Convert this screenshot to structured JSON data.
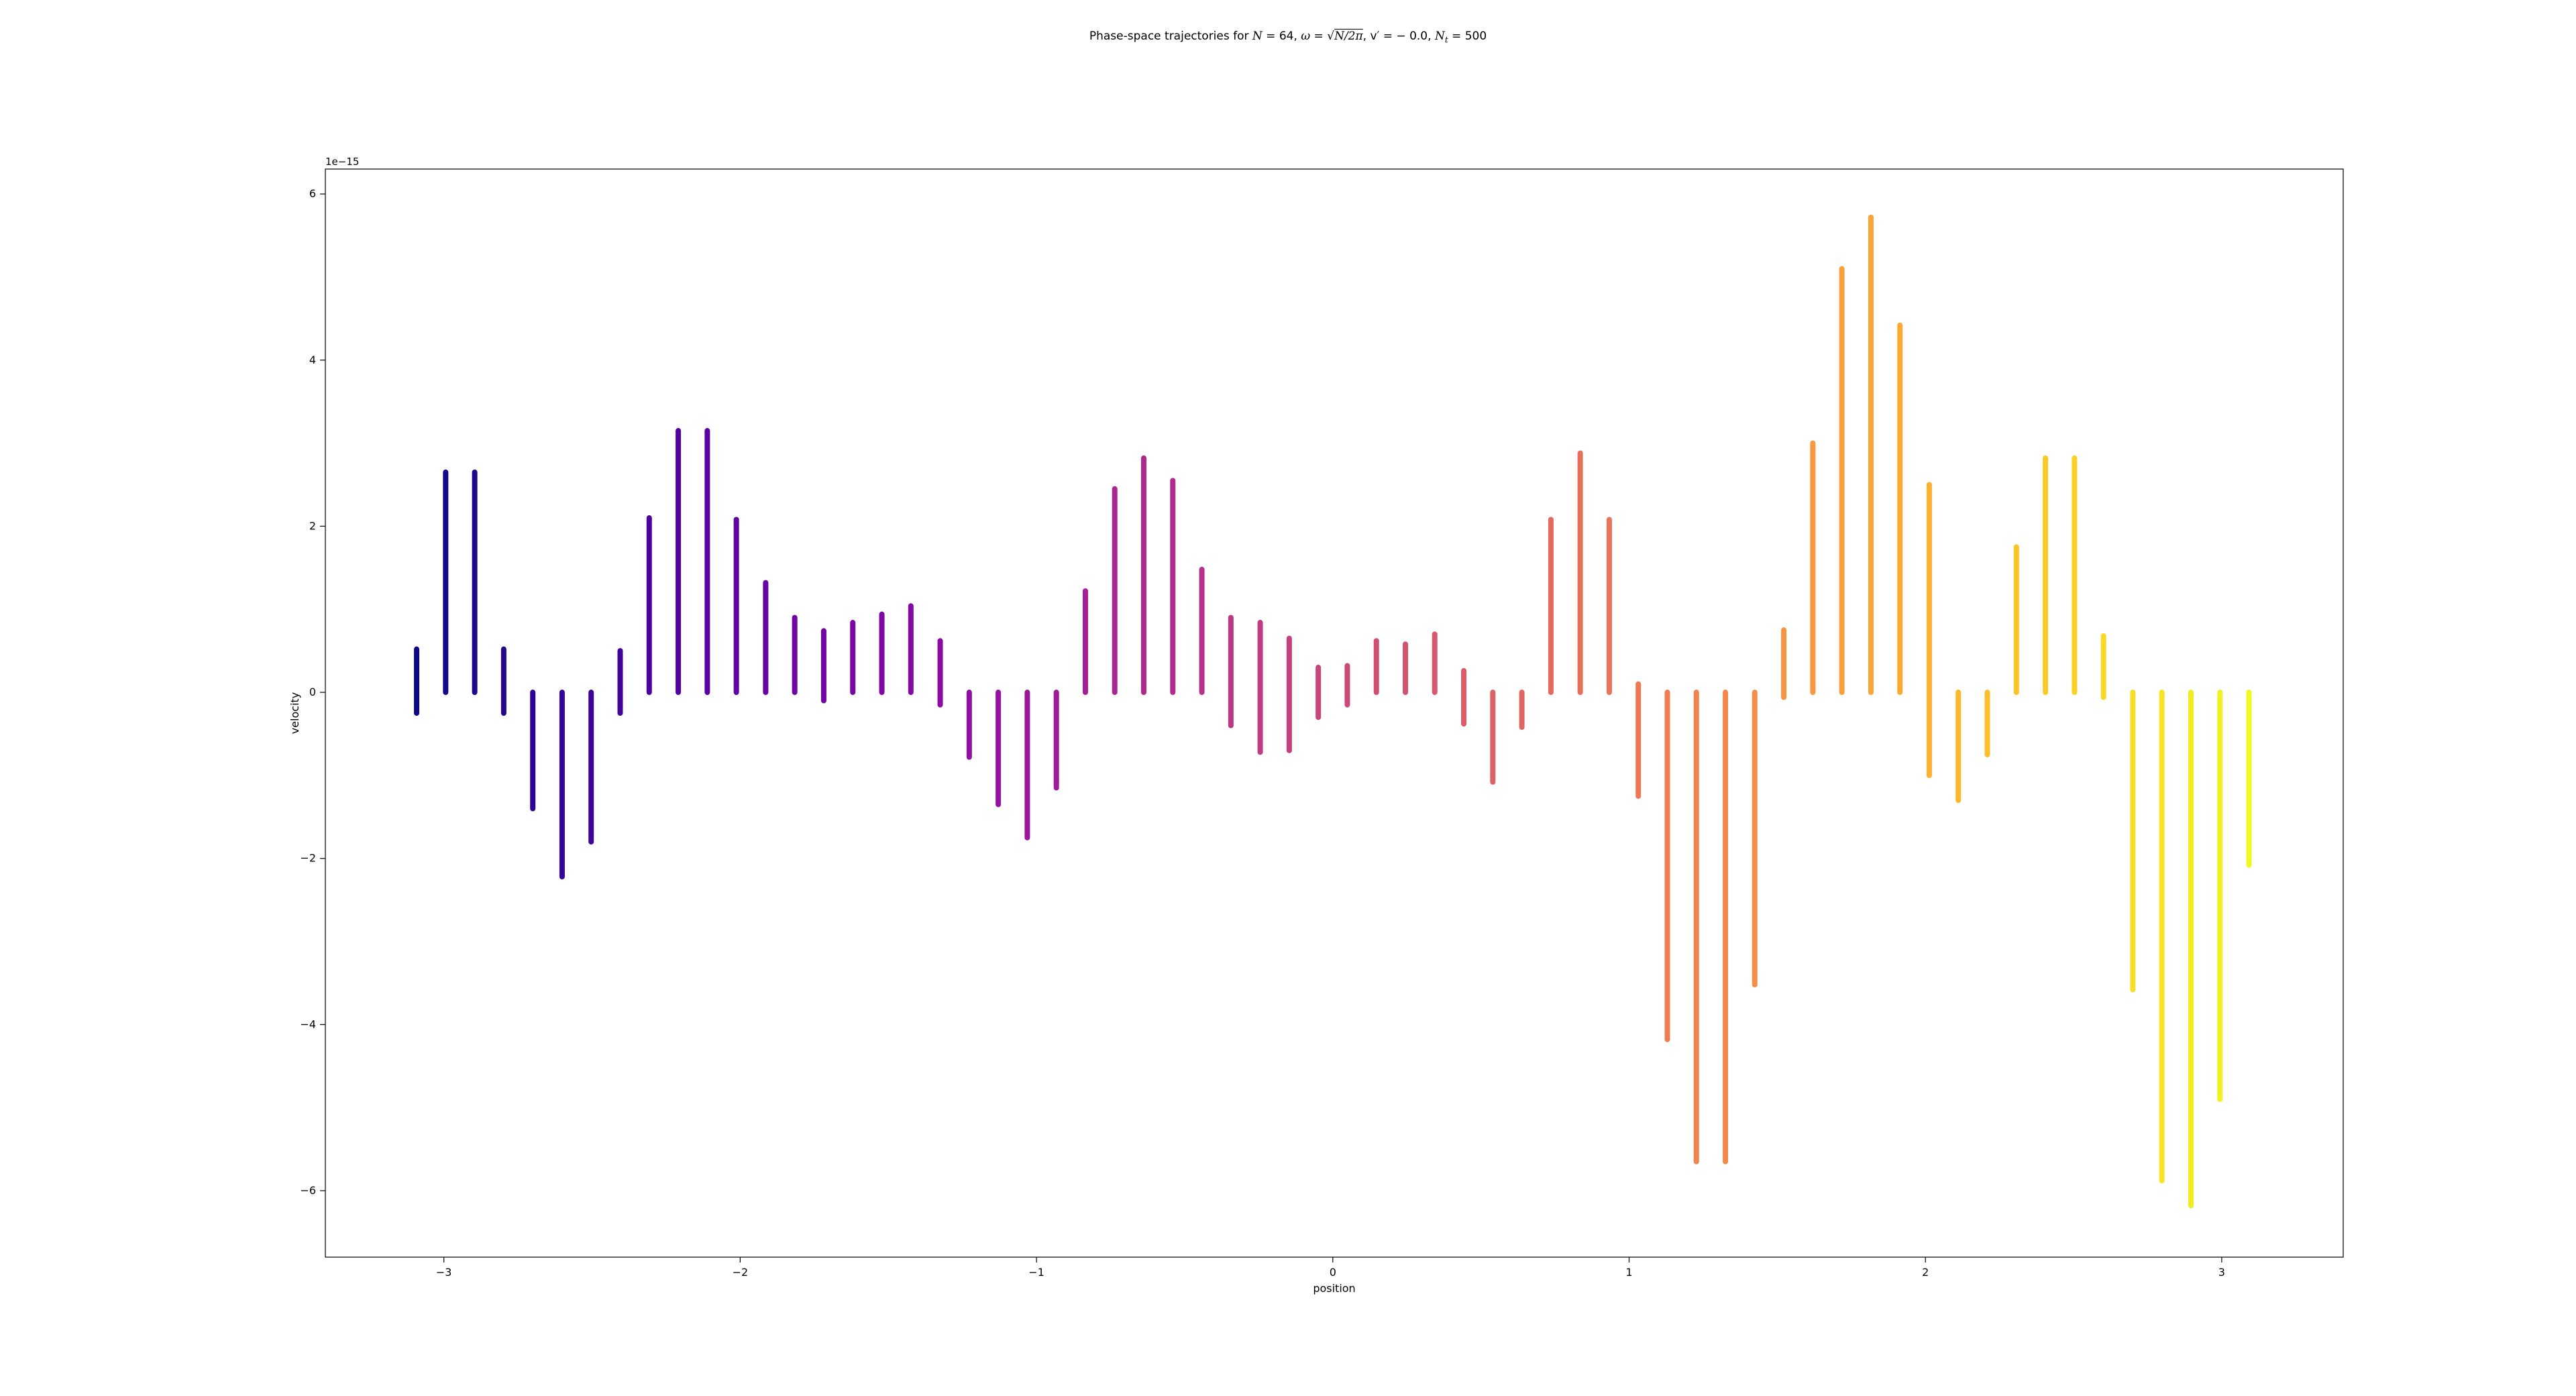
{
  "chart_data": {
    "type": "scatter",
    "title_parts": {
      "pre": "Phase-space trajectories for ",
      "N_sym": "N",
      "N_eq": " = 64, ",
      "omega_sym": "ω",
      "omega_eq": " = ",
      "sqrt_sym": "√",
      "sqrt_arg": "N/2π",
      "v_part": ", v′ = − 0.0, ",
      "Nt_sym": "N",
      "Nt_sub": "t",
      "Nt_eq": " = 500"
    },
    "xlabel": "position",
    "ylabel": "velocity",
    "y_offset_text": "1e−15",
    "xlim": [
      -3.4,
      3.41
    ],
    "ylim": [
      -6.8,
      6.3
    ],
    "x_ticks": [
      -3,
      -2,
      -1,
      0,
      1,
      2,
      3
    ],
    "x_tick_labels": [
      "−3",
      "−2",
      "−1",
      "0",
      "1",
      "2",
      "3"
    ],
    "y_ticks": [
      -6,
      -4,
      -2,
      0,
      2,
      4,
      6
    ],
    "y_tick_labels": [
      "−6",
      "−4",
      "−2",
      "0",
      "2",
      "4",
      "6"
    ],
    "colormap": "plasma",
    "colormap_stops": [
      "#0d0887",
      "#5302a3",
      "#8b0aa5",
      "#b83289",
      "#db5c68",
      "#f48849",
      "#febd2a",
      "#f0f921"
    ],
    "segments": [
      {
        "x": -3.092,
        "y_min": -0.25,
        "y_max": 0.52
      },
      {
        "x": -2.994,
        "y_min": 0.0,
        "y_max": 2.65
      },
      {
        "x": -2.896,
        "y_min": 0.0,
        "y_max": 2.65
      },
      {
        "x": -2.798,
        "y_min": -0.25,
        "y_max": 0.52
      },
      {
        "x": -2.7,
        "y_min": -1.4,
        "y_max": 0.0
      },
      {
        "x": -2.601,
        "y_min": -2.22,
        "y_max": 0.0
      },
      {
        "x": -2.503,
        "y_min": -1.8,
        "y_max": 0.0
      },
      {
        "x": -2.405,
        "y_min": -0.25,
        "y_max": 0.5
      },
      {
        "x": -2.307,
        "y_min": 0.0,
        "y_max": 2.1
      },
      {
        "x": -2.209,
        "y_min": 0.0,
        "y_max": 3.15
      },
      {
        "x": -2.111,
        "y_min": 0.0,
        "y_max": 3.15
      },
      {
        "x": -2.013,
        "y_min": 0.0,
        "y_max": 2.08
      },
      {
        "x": -1.914,
        "y_min": 0.0,
        "y_max": 1.32
      },
      {
        "x": -1.816,
        "y_min": 0.0,
        "y_max": 0.9
      },
      {
        "x": -1.718,
        "y_min": -0.1,
        "y_max": 0.74
      },
      {
        "x": -1.62,
        "y_min": 0.0,
        "y_max": 0.84
      },
      {
        "x": -1.522,
        "y_min": 0.0,
        "y_max": 0.94
      },
      {
        "x": -1.424,
        "y_min": 0.0,
        "y_max": 1.04
      },
      {
        "x": -1.325,
        "y_min": -0.15,
        "y_max": 0.62
      },
      {
        "x": -1.227,
        "y_min": -0.78,
        "y_max": 0.0
      },
      {
        "x": -1.129,
        "y_min": -1.35,
        "y_max": 0.0
      },
      {
        "x": -1.031,
        "y_min": -1.75,
        "y_max": 0.0
      },
      {
        "x": -0.933,
        "y_min": -1.15,
        "y_max": 0.0
      },
      {
        "x": -0.835,
        "y_min": 0.0,
        "y_max": 1.22
      },
      {
        "x": -0.736,
        "y_min": 0.0,
        "y_max": 2.45
      },
      {
        "x": -0.638,
        "y_min": 0.0,
        "y_max": 2.82
      },
      {
        "x": -0.54,
        "y_min": 0.0,
        "y_max": 2.55
      },
      {
        "x": -0.442,
        "y_min": 0.0,
        "y_max": 1.48
      },
      {
        "x": -0.344,
        "y_min": -0.4,
        "y_max": 0.9
      },
      {
        "x": -0.245,
        "y_min": -0.72,
        "y_max": 0.84
      },
      {
        "x": -0.147,
        "y_min": -0.7,
        "y_max": 0.65
      },
      {
        "x": -0.049,
        "y_min": -0.3,
        "y_max": 0.3
      },
      {
        "x": 0.049,
        "y_min": -0.15,
        "y_max": 0.32
      },
      {
        "x": 0.147,
        "y_min": 0.0,
        "y_max": 0.62
      },
      {
        "x": 0.245,
        "y_min": 0.0,
        "y_max": 0.58
      },
      {
        "x": 0.344,
        "y_min": 0.0,
        "y_max": 0.7
      },
      {
        "x": 0.442,
        "y_min": -0.38,
        "y_max": 0.26
      },
      {
        "x": 0.54,
        "y_min": -1.08,
        "y_max": 0.0
      },
      {
        "x": 0.638,
        "y_min": -0.42,
        "y_max": 0.0
      },
      {
        "x": 0.736,
        "y_min": 0.0,
        "y_max": 2.08
      },
      {
        "x": 0.835,
        "y_min": 0.0,
        "y_max": 2.88
      },
      {
        "x": 0.933,
        "y_min": 0.0,
        "y_max": 2.08
      },
      {
        "x": 1.031,
        "y_min": -1.25,
        "y_max": 0.1
      },
      {
        "x": 1.129,
        "y_min": -4.18,
        "y_max": 0.0
      },
      {
        "x": 1.227,
        "y_min": -5.65,
        "y_max": 0.0
      },
      {
        "x": 1.325,
        "y_min": -5.65,
        "y_max": 0.0
      },
      {
        "x": 1.424,
        "y_min": -3.52,
        "y_max": 0.0
      },
      {
        "x": 1.522,
        "y_min": -0.06,
        "y_max": 0.75
      },
      {
        "x": 1.62,
        "y_min": 0.0,
        "y_max": 3.0
      },
      {
        "x": 1.718,
        "y_min": 0.0,
        "y_max": 5.1
      },
      {
        "x": 1.816,
        "y_min": 0.0,
        "y_max": 5.72
      },
      {
        "x": 1.914,
        "y_min": 0.0,
        "y_max": 4.42
      },
      {
        "x": 2.013,
        "y_min": -1.0,
        "y_max": 2.5
      },
      {
        "x": 2.111,
        "y_min": -1.3,
        "y_max": 0.0
      },
      {
        "x": 2.209,
        "y_min": -0.75,
        "y_max": 0.0
      },
      {
        "x": 2.307,
        "y_min": 0.0,
        "y_max": 1.75
      },
      {
        "x": 2.405,
        "y_min": 0.0,
        "y_max": 2.82
      },
      {
        "x": 2.503,
        "y_min": 0.0,
        "y_max": 2.82
      },
      {
        "x": 2.601,
        "y_min": -0.06,
        "y_max": 0.68
      },
      {
        "x": 2.7,
        "y_min": -3.58,
        "y_max": 0.0
      },
      {
        "x": 2.798,
        "y_min": -5.88,
        "y_max": 0.0
      },
      {
        "x": 2.896,
        "y_min": -6.18,
        "y_max": 0.0
      },
      {
        "x": 2.994,
        "y_min": -4.9,
        "y_max": 0.0
      },
      {
        "x": 3.092,
        "y_min": -2.08,
        "y_max": 0.0
      }
    ]
  }
}
